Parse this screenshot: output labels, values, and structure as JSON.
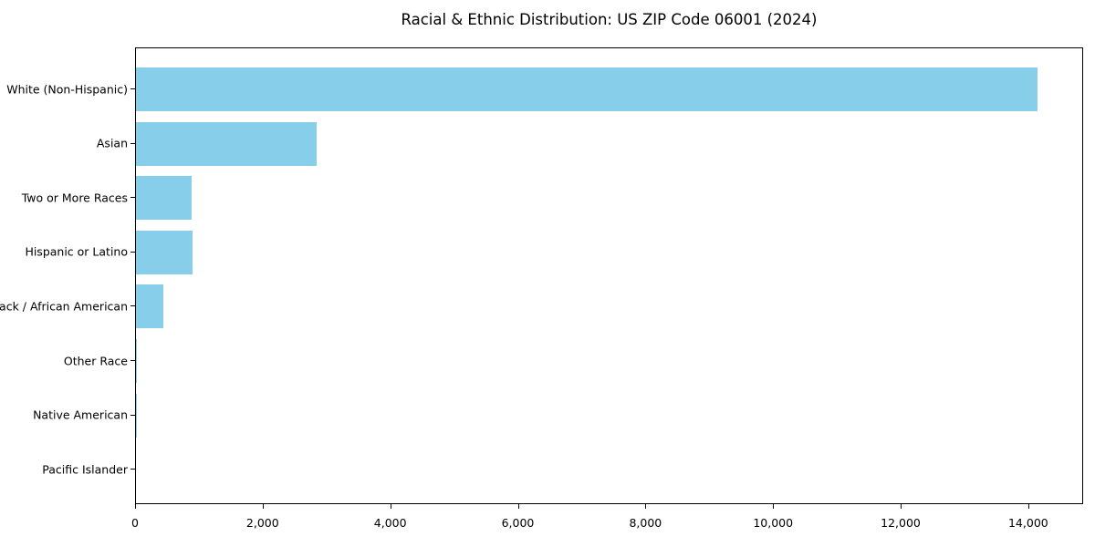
{
  "figure": {
    "background": "#ffffff"
  },
  "chart_data": {
    "type": "bar",
    "orientation": "horizontal",
    "title": "Racial & Ethnic Distribution: US ZIP Code 06001 (2024)",
    "xlabel": "",
    "ylabel": "",
    "categories": [
      "White (Non-Hispanic)",
      "Asian",
      "Two or More Races",
      "Hispanic or Latino",
      "Black / African American",
      "Other Race",
      "Native American",
      "Pacific Islander"
    ],
    "values": [
      14130,
      2830,
      870,
      885,
      430,
      20,
      5,
      0
    ],
    "bar_color": "#87ceeb",
    "axis_color": "#000000",
    "text_color": "#000000",
    "xlim": [
      0,
      14860
    ],
    "x_ticks": [
      0,
      2000,
      4000,
      6000,
      8000,
      10000,
      12000,
      14000
    ],
    "x_tick_labels": [
      "0",
      "2,000",
      "4,000",
      "6,000",
      "8,000",
      "10,000",
      "12,000",
      "14,000"
    ],
    "grid": false,
    "legend": "none"
  }
}
